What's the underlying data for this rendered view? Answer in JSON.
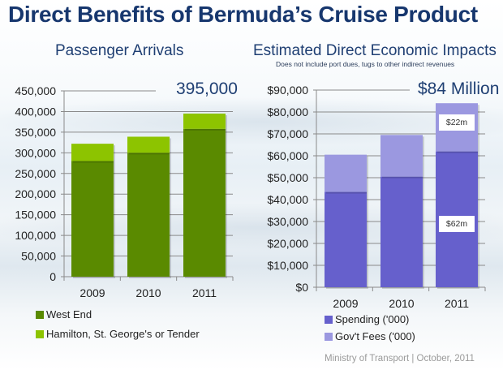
{
  "title": "Direct Benefits of Bermuda’s Cruise Product",
  "footer": "Ministry of Transport  |  October, 2011",
  "chart_data": [
    {
      "type": "bar",
      "stacked": true,
      "title": "Passenger Arrivals",
      "callout": "395,000",
      "categories": [
        "2009",
        "2010",
        "2011"
      ],
      "series": [
        {
          "name": "West End",
          "color": "#5a8a00",
          "values": [
            280000,
            300000,
            358000
          ]
        },
        {
          "name": "Hamilton, St. George's or Tender",
          "color": "#8dc400",
          "values": [
            42000,
            39000,
            37000
          ]
        }
      ],
      "ylim": [
        0,
        450000
      ],
      "yticks": [
        0,
        50000,
        100000,
        150000,
        200000,
        250000,
        300000,
        350000,
        400000,
        450000
      ],
      "ytick_labels": [
        "0",
        "50,000",
        "100,000",
        "150,000",
        "200,000",
        "250,000",
        "300,000",
        "350,000",
        "400,000",
        "450,000"
      ],
      "xlabel": "",
      "ylabel": "",
      "grid": true,
      "legend_position": "bottom"
    },
    {
      "type": "bar",
      "stacked": true,
      "title": "Estimated Direct Economic Impacts",
      "subtitle": "Does not include port dues, tugs to other indirect revenues",
      "callout": "$84 Million",
      "categories": [
        "2009",
        "2010",
        "2011"
      ],
      "series": [
        {
          "name": "Spending ('000)",
          "color": "#6660cc",
          "values": [
            43500,
            50500,
            62000
          ]
        },
        {
          "name": "Gov't Fees ('000)",
          "color": "#9b98e0",
          "values": [
            17000,
            19000,
            22000
          ]
        }
      ],
      "annotations": [
        {
          "category": "2011",
          "series": "Gov't Fees ('000)",
          "text": "$22m"
        },
        {
          "category": "2011",
          "series": "Spending ('000)",
          "text": "$62m"
        }
      ],
      "ylim": [
        0,
        90000
      ],
      "yticks": [
        0,
        10000,
        20000,
        30000,
        40000,
        50000,
        60000,
        70000,
        80000,
        90000
      ],
      "ytick_labels": [
        "$0",
        "$10,000",
        "$20,000",
        "$30,000",
        "$40,000",
        "$50,000",
        "$60,000",
        "$70,000",
        "$80,000",
        "$90,000"
      ],
      "xlabel": "",
      "ylabel": "",
      "grid": true,
      "legend_position": "bottom"
    }
  ]
}
